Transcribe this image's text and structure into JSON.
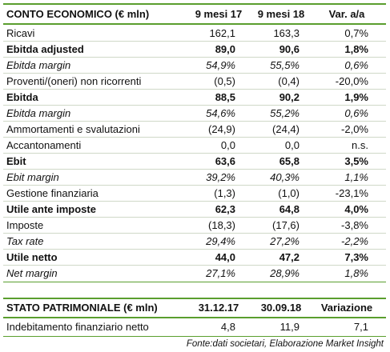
{
  "income_statement": {
    "header": [
      "CONTO ECONOMICO (€ mln)",
      "9 mesi 17",
      "9 mesi 18",
      "Var. a/a"
    ],
    "rows": [
      {
        "style": "normal",
        "cells": [
          "Ricavi",
          "162,1",
          "163,3",
          "0,7%"
        ]
      },
      {
        "style": "bold",
        "cells": [
          "Ebitda adjusted",
          "89,0",
          "90,6",
          "1,8%"
        ]
      },
      {
        "style": "italic",
        "cells": [
          "Ebitda margin",
          "54,9%",
          "55,5%",
          "0,6%"
        ]
      },
      {
        "style": "normal",
        "cells": [
          "Proventi/(oneri) non ricorrenti",
          "(0,5)",
          "(0,4)",
          "-20,0%"
        ]
      },
      {
        "style": "bold",
        "cells": [
          "Ebitda",
          "88,5",
          "90,2",
          "1,9%"
        ]
      },
      {
        "style": "italic",
        "cells": [
          "Ebitda margin",
          "54,6%",
          "55,2%",
          "0,6%"
        ]
      },
      {
        "style": "normal",
        "cells": [
          "Ammortamenti e svalutazioni",
          "(24,9)",
          "(24,4)",
          "-2,0%"
        ]
      },
      {
        "style": "normal",
        "cells": [
          "Accantonamenti",
          "0,0",
          "0,0",
          "n.s."
        ]
      },
      {
        "style": "bold",
        "cells": [
          "Ebit",
          "63,6",
          "65,8",
          "3,5%"
        ]
      },
      {
        "style": "italic",
        "cells": [
          "Ebit margin",
          "39,2%",
          "40,3%",
          "1,1%"
        ]
      },
      {
        "style": "normal",
        "cells": [
          "Gestione finanziaria",
          "(1,3)",
          "(1,0)",
          "-23,1%"
        ]
      },
      {
        "style": "bold",
        "cells": [
          "Utile ante imposte",
          "62,3",
          "64,8",
          "4,0%"
        ]
      },
      {
        "style": "normal",
        "cells": [
          "Imposte",
          "(18,3)",
          "(17,6)",
          "-3,8%"
        ]
      },
      {
        "style": "italic",
        "cells": [
          "Tax rate",
          "29,4%",
          "27,2%",
          "-2,2%"
        ]
      },
      {
        "style": "bold",
        "cells": [
          "Utile netto",
          "44,0",
          "47,2",
          "7,3%"
        ]
      },
      {
        "style": "italic",
        "cells": [
          "Net margin",
          "27,1%",
          "28,9%",
          "1,8%"
        ]
      }
    ]
  },
  "balance_sheet": {
    "header": [
      "STATO PATRIMONIALE (€ mln)",
      "31.12.17",
      "30.09.18",
      "Variazione"
    ],
    "rows": [
      {
        "style": "normal",
        "cells": [
          "Indebitamento finanziario netto",
          "4,8",
          "11,9",
          "7,1"
        ]
      }
    ]
  },
  "footnote": "Fonte:dati societari, Elaborazione Market Insight"
}
